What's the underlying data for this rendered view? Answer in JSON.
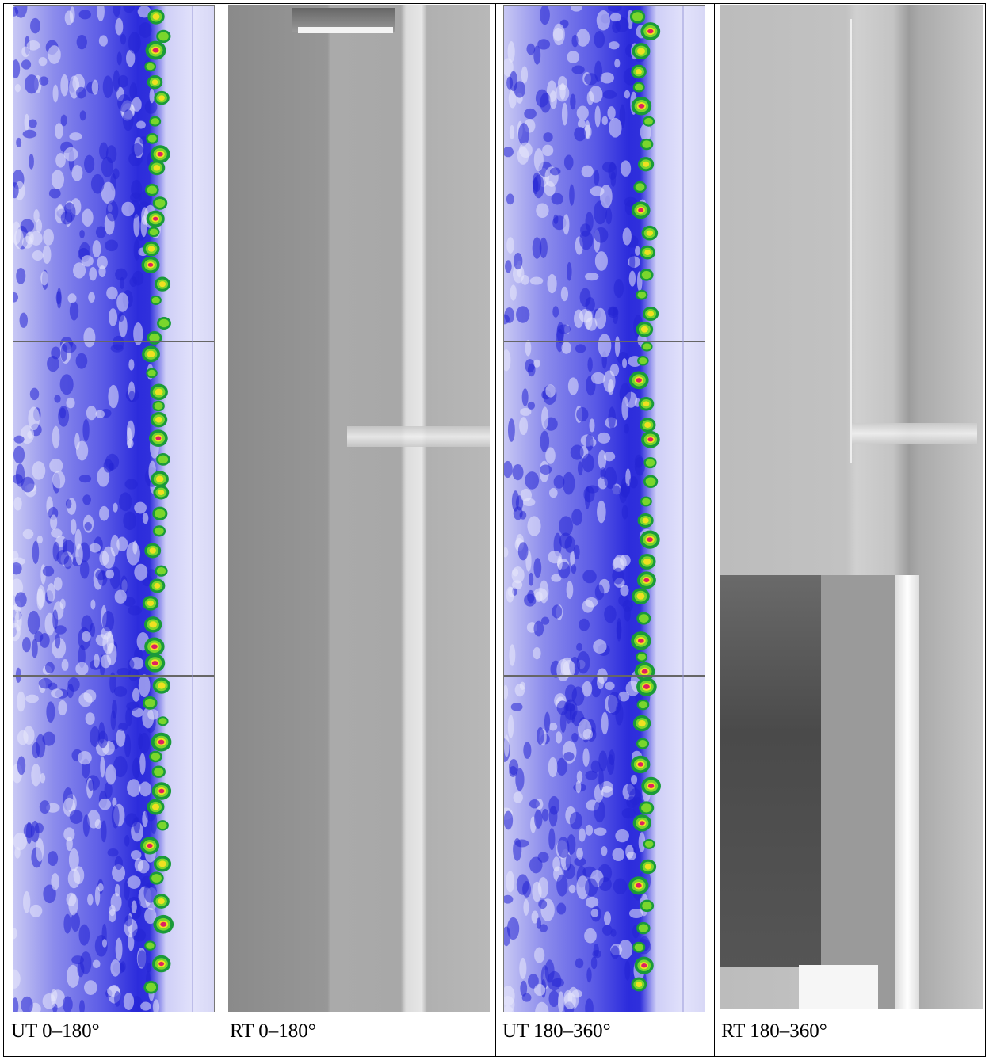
{
  "table": {
    "captions": [
      "UT 0–180°",
      "RT 0–180°",
      "UT 180–360°",
      "RT 180–360°"
    ]
  }
}
